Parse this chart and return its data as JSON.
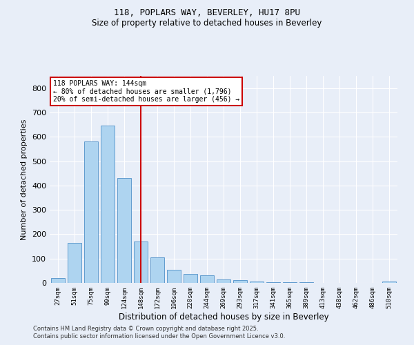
{
  "title1": "118, POPLARS WAY, BEVERLEY, HU17 8PU",
  "title2": "Size of property relative to detached houses in Beverley",
  "xlabel": "Distribution of detached houses by size in Beverley",
  "ylabel": "Number of detached properties",
  "bin_labels": [
    "27sqm",
    "51sqm",
    "75sqm",
    "99sqm",
    "124sqm",
    "148sqm",
    "172sqm",
    "196sqm",
    "220sqm",
    "244sqm",
    "269sqm",
    "293sqm",
    "317sqm",
    "341sqm",
    "365sqm",
    "389sqm",
    "413sqm",
    "438sqm",
    "462sqm",
    "486sqm",
    "510sqm"
  ],
  "bar_heights": [
    20,
    165,
    580,
    645,
    430,
    170,
    105,
    55,
    38,
    30,
    15,
    10,
    5,
    2,
    2,
    2,
    0,
    0,
    0,
    0,
    5
  ],
  "bar_color": "#aed4f0",
  "bar_edge_color": "#5090c8",
  "vline_x_index": 5,
  "vline_color": "#cc0000",
  "annotation_text": "118 POPLARS WAY: 144sqm\n← 80% of detached houses are smaller (1,796)\n20% of semi-detached houses are larger (456) →",
  "annotation_box_color": "#cc0000",
  "ylim": [
    0,
    850
  ],
  "yticks": [
    0,
    100,
    200,
    300,
    400,
    500,
    600,
    700,
    800
  ],
  "background_color": "#e8eef8",
  "grid_color": "#ffffff",
  "footer1": "Contains HM Land Registry data © Crown copyright and database right 2025.",
  "footer2": "Contains public sector information licensed under the Open Government Licence v3.0."
}
